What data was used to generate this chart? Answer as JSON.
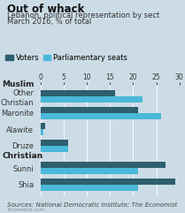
{
  "title": "Out of whack",
  "subtitle": "Lebanon, political representation by sect",
  "subtitle2": "March 2016, % of total",
  "source": "Sources: National Democratic Institute; The Economist",
  "watermark": "Economist.com",
  "categories": [
    "Shia",
    "Sunni",
    "Druze",
    "Alawite",
    "Maronite",
    "Other\nChristian"
  ],
  "group_labels": [
    "Muslim",
    "Christian"
  ],
  "voters": [
    29,
    27,
    6,
    1,
    21,
    16
  ],
  "seats": [
    21,
    21,
    6,
    0.5,
    26,
    22
  ],
  "voters_color": "#2e5f6e",
  "seats_color": "#4ab8d8",
  "background_color": "#ccdce6",
  "fig_background": "#ccdce6",
  "xlim": [
    0,
    30
  ],
  "xticks": [
    0,
    5,
    10,
    15,
    20,
    25,
    30
  ],
  "bar_height": 0.38,
  "title_fontsize": 8.5,
  "subtitle_fontsize": 6.0,
  "label_fontsize": 6.0,
  "tick_fontsize": 5.5,
  "legend_fontsize": 6.0,
  "group_fontsize": 6.5,
  "source_fontsize": 5.0
}
